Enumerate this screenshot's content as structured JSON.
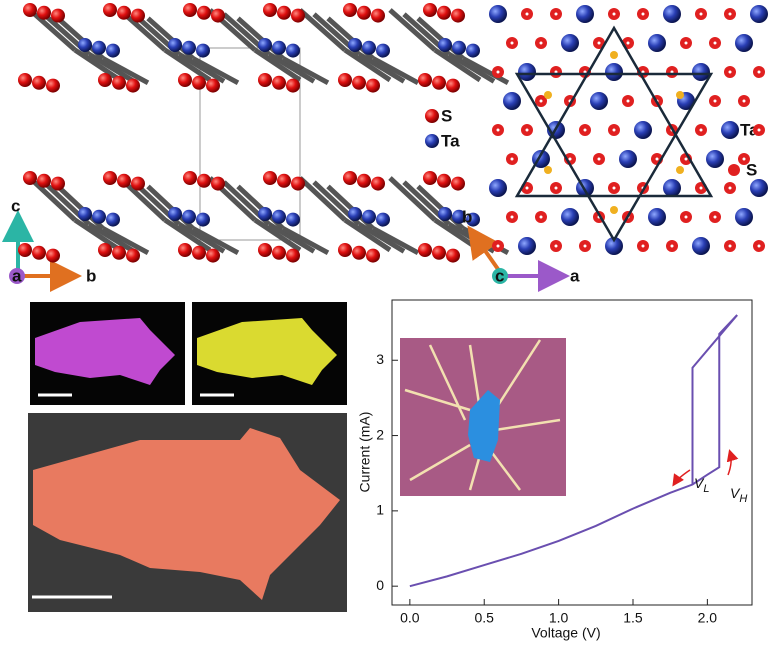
{
  "structure_side": {
    "legend": [
      "S",
      "Ta"
    ],
    "axes": [
      "c",
      "a",
      "b"
    ]
  },
  "structure_top": {
    "legend": [
      "Ta",
      "S"
    ],
    "axes": [
      "b",
      "c",
      "a"
    ]
  },
  "chart_data": {
    "type": "line",
    "xlabel": "Voltage (V)",
    "ylabel": "Current (mA)",
    "xlim": [
      -0.12,
      2.3
    ],
    "ylim": [
      -0.25,
      3.8
    ],
    "xticks": [
      {
        "value": 0,
        "label": "0.0"
      },
      0.5,
      {
        "value": 1,
        "label": "1.0"
      },
      1.5,
      {
        "value": 2,
        "label": "2.0"
      }
    ],
    "yticks": [
      0,
      1,
      2,
      3
    ],
    "series": [
      {
        "color": "#6a4fb0",
        "x": [
          0,
          0.25,
          0.5,
          0.75,
          1.0,
          1.25,
          1.5,
          1.75,
          1.9,
          2.0,
          2.08,
          2.08,
          2.2
        ],
        "values": [
          0,
          0.13,
          0.28,
          0.43,
          0.6,
          0.8,
          1.03,
          1.24,
          1.35,
          1.48,
          1.58,
          3.35,
          3.6
        ]
      },
      {
        "color": "#6a4fb0",
        "x": [
          2.2,
          1.9,
          1.9
        ],
        "values": [
          3.6,
          2.9,
          1.35
        ]
      }
    ],
    "annotations": [
      {
        "text": "V",
        "subscript": "L"
      },
      {
        "text": "V",
        "subscript": "H"
      }
    ]
  }
}
